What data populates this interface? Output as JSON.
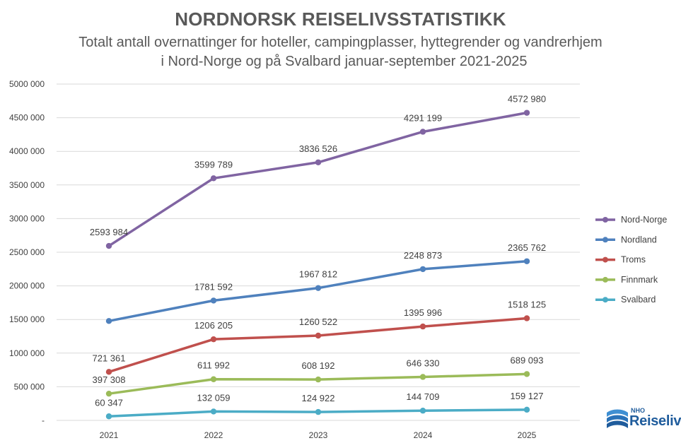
{
  "header": {
    "title": "NORDNORSK REISELIVSSTATISTIKK",
    "subtitle_line1": "Totalt antall overnattinger for hoteller, campingplasser, hyttegrender og vandrerhjem",
    "subtitle_line2": "i Nord-Norge og på Svalbard januar-september 2021-2025"
  },
  "chart_data": {
    "type": "line",
    "title": "NORDNORSK REISELIVSSTATISTIKK",
    "subtitle": "Totalt antall overnattinger for hoteller, campingplasser, hyttegrender og vandrerhjem i Nord-Norge og på Svalbard januar-september 2021-2025",
    "categories": [
      "2021",
      "2022",
      "2023",
      "2024",
      "2025"
    ],
    "ylim": [
      0,
      5000000
    ],
    "yticks": [
      0,
      500000,
      1000000,
      1500000,
      2000000,
      2500000,
      3000000,
      3500000,
      4000000,
      4500000,
      5000000
    ],
    "ytick_labels": [
      "-",
      "500 000",
      "1000 000",
      "1500 000",
      "2000 000",
      "2500 000",
      "3000 000",
      "3500 000",
      "4000 000",
      "4500 000",
      "5000 000"
    ],
    "grid": true,
    "legend_position": "right",
    "series": [
      {
        "name": "Nord-Norge",
        "color": "#8064a2",
        "values": [
          2593984,
          3599789,
          3836526,
          4291199,
          4572980
        ],
        "labels": [
          "2593 984",
          "3599 789",
          "3836 526",
          "4291 199",
          "4572 980"
        ]
      },
      {
        "name": "Nordland",
        "color": "#4f81bd",
        "values": [
          1478000,
          1781592,
          1967812,
          2248873,
          2365762
        ],
        "labels": [
          null,
          "1781 592",
          "1967 812",
          "2248 873",
          "2365 762"
        ]
      },
      {
        "name": "Troms",
        "color": "#c0504d",
        "values": [
          721361,
          1206205,
          1260522,
          1395996,
          1518125
        ],
        "labels": [
          "721 361",
          "1206 205",
          "1260 522",
          "1395 996",
          "1518 125"
        ]
      },
      {
        "name": "Finnmark",
        "color": "#9bbb59",
        "values": [
          397308,
          611992,
          608192,
          646330,
          689093
        ],
        "labels": [
          "397 308",
          "611 992",
          "608 192",
          "646 330",
          "689 093"
        ]
      },
      {
        "name": "Svalbard",
        "color": "#4bacc6",
        "values": [
          60347,
          132059,
          124922,
          144709,
          159127
        ],
        "labels": [
          "60 347",
          "132 059",
          "124 922",
          "144 709",
          "159 127"
        ]
      }
    ]
  },
  "logo": {
    "small_text": "NHO",
    "main_text": "Reiseliv",
    "color": "#1f5c9c"
  }
}
